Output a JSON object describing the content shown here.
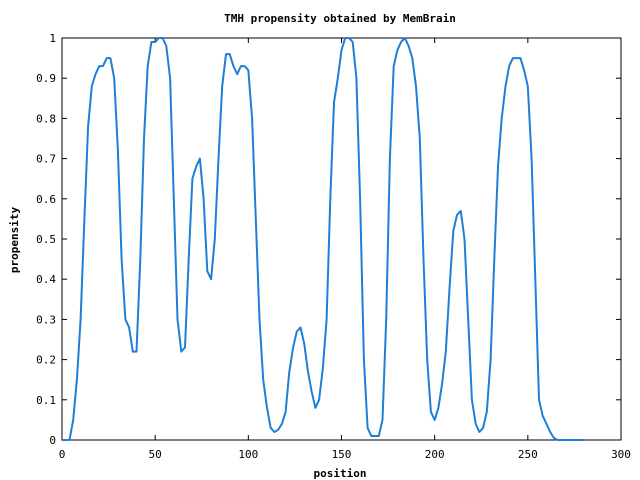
{
  "chart_data": {
    "type": "line",
    "title": "TMH propensity obtained by MemBrain",
    "xlabel": "position",
    "ylabel": "propensity",
    "xlim": [
      0,
      300
    ],
    "ylim": [
      0,
      1
    ],
    "x_ticks": [
      "0",
      "50",
      "100",
      "150",
      "200",
      "250",
      "300"
    ],
    "y_ticks": [
      "0",
      "0.1",
      "0.2",
      "0.3",
      "0.4",
      "0.5",
      "0.6",
      "0.7",
      "0.8",
      "0.9",
      "1"
    ],
    "grid": false,
    "line_color": "#1f7fd6",
    "series": [
      {
        "x": [
          0,
          4,
          6,
          8,
          10,
          12,
          14,
          16,
          18,
          20,
          22,
          24,
          26,
          28,
          30,
          32,
          34,
          36,
          38,
          40,
          42,
          44,
          46,
          48,
          50,
          52,
          54,
          56,
          58,
          60,
          62,
          64,
          66,
          68,
          70,
          72,
          74,
          76,
          78,
          80,
          82,
          84,
          86,
          88,
          90,
          92,
          94,
          96,
          98,
          100,
          102,
          104,
          106,
          108,
          110,
          112,
          114,
          116,
          118,
          120,
          122,
          124,
          126,
          128,
          130,
          132,
          134,
          136,
          138,
          140,
          142,
          144,
          146,
          148,
          150,
          152,
          154,
          156,
          158,
          160,
          162,
          164,
          166,
          168,
          170,
          172,
          174,
          176,
          178,
          180,
          182,
          184,
          186,
          188,
          190,
          192,
          194,
          196,
          198,
          200,
          202,
          204,
          206,
          208,
          210,
          212,
          214,
          216,
          218,
          220,
          222,
          224,
          226,
          228,
          230,
          232,
          234,
          236,
          238,
          240,
          242,
          244,
          246,
          248,
          250,
          252,
          254,
          256,
          258,
          260,
          262,
          264,
          266,
          270,
          275,
          280
        ],
        "y": [
          0.0,
          0.0,
          0.05,
          0.15,
          0.3,
          0.55,
          0.78,
          0.88,
          0.91,
          0.93,
          0.93,
          0.95,
          0.95,
          0.9,
          0.72,
          0.45,
          0.3,
          0.28,
          0.22,
          0.22,
          0.45,
          0.75,
          0.93,
          0.99,
          0.99,
          1.0,
          1.0,
          0.98,
          0.9,
          0.6,
          0.3,
          0.22,
          0.23,
          0.45,
          0.65,
          0.68,
          0.7,
          0.6,
          0.42,
          0.4,
          0.5,
          0.7,
          0.88,
          0.96,
          0.96,
          0.93,
          0.91,
          0.93,
          0.93,
          0.92,
          0.8,
          0.55,
          0.3,
          0.15,
          0.08,
          0.03,
          0.02,
          0.025,
          0.04,
          0.07,
          0.17,
          0.23,
          0.27,
          0.28,
          0.24,
          0.17,
          0.12,
          0.08,
          0.1,
          0.18,
          0.3,
          0.6,
          0.84,
          0.9,
          0.97,
          1.0,
          1.0,
          0.99,
          0.9,
          0.6,
          0.2,
          0.03,
          0.01,
          0.01,
          0.01,
          0.05,
          0.3,
          0.7,
          0.93,
          0.97,
          0.99,
          1.0,
          0.98,
          0.95,
          0.88,
          0.75,
          0.45,
          0.2,
          0.07,
          0.05,
          0.08,
          0.14,
          0.22,
          0.38,
          0.52,
          0.56,
          0.57,
          0.5,
          0.3,
          0.1,
          0.04,
          0.02,
          0.03,
          0.07,
          0.2,
          0.45,
          0.68,
          0.8,
          0.88,
          0.93,
          0.95,
          0.95,
          0.95,
          0.92,
          0.88,
          0.7,
          0.4,
          0.1,
          0.06,
          0.04,
          0.02,
          0.005,
          0.0,
          0.0,
          0.0,
          0.0
        ]
      }
    ]
  }
}
